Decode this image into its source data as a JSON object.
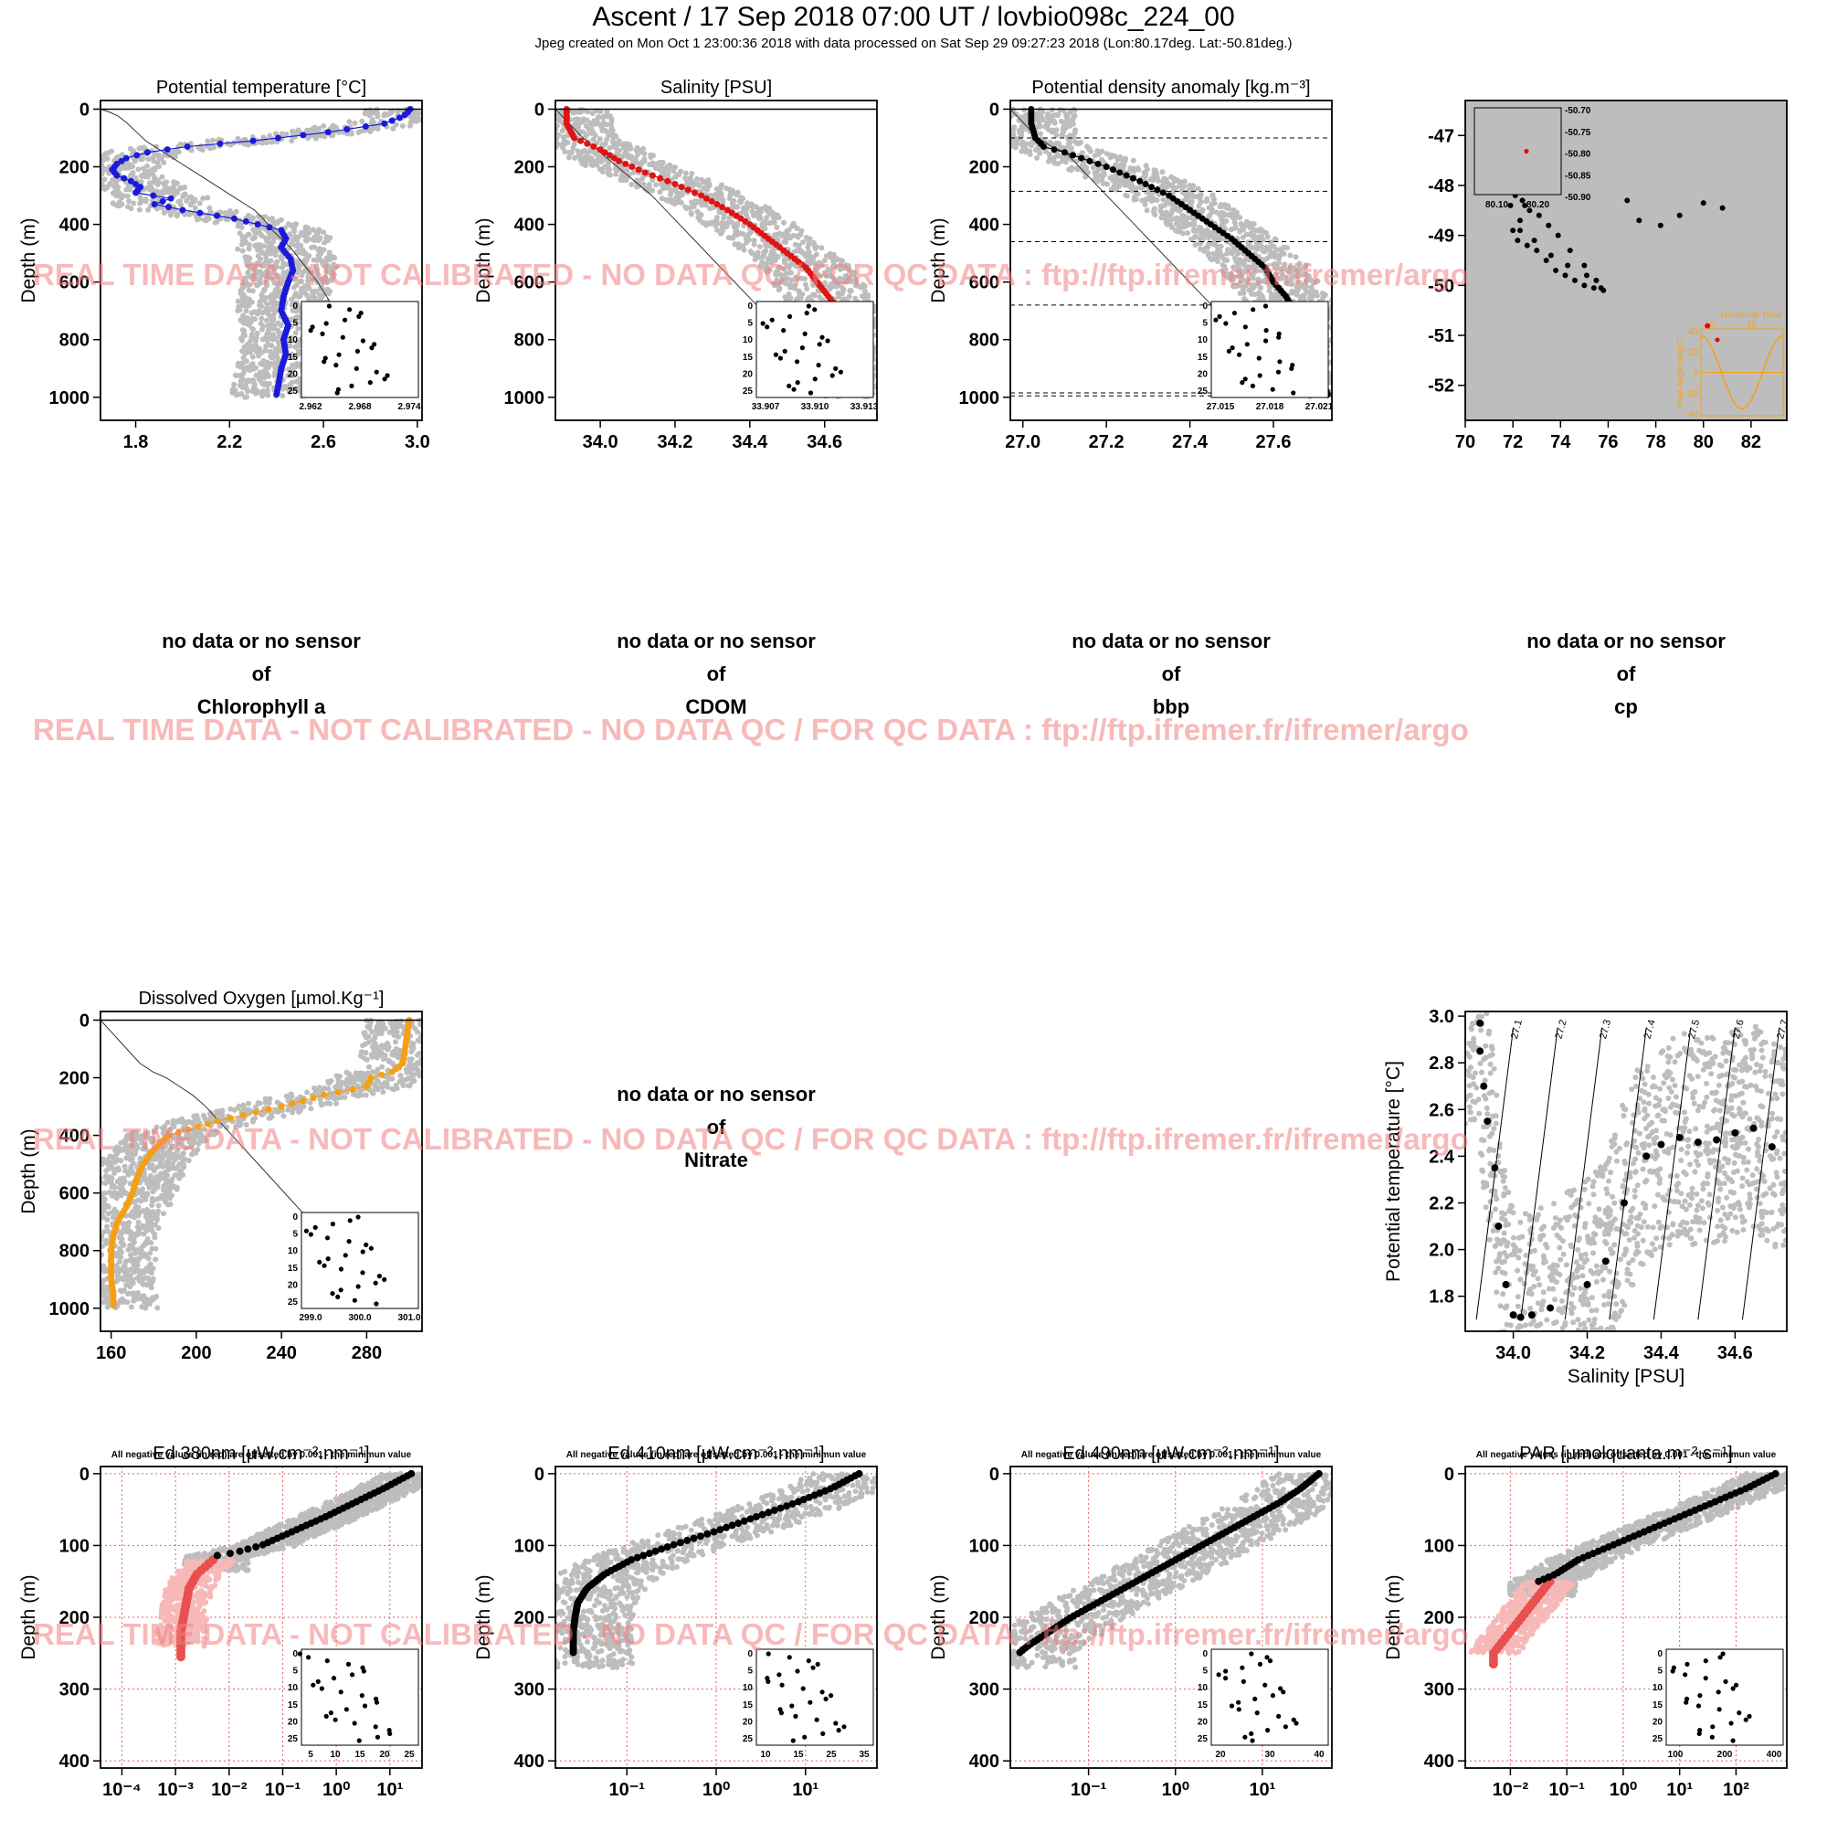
{
  "page": {
    "title": "Ascent / 17 Sep 2018 07:00 UT /  lovbio098c_224_00",
    "subtitle": "Jpeg created on Mon Oct  1 23:00:36 2018 with data processed on Sat Sep 29 09:27:23 2018 (Lon:80.17deg. Lat:-50.81deg.)",
    "watermark": "REAL TIME DATA - NOT CALIBRATED - NO DATA QC   /  FOR QC DATA : ftp://ftp.ifremer.fr/ifremer/argo",
    "depth_label": "Depth (m)",
    "negative_note": "All negative values (in red) are offsetted by 0.001 - the minimun value",
    "no_data_line1": "no data or no sensor",
    "no_data_line2": "of"
  },
  "chart_data": [
    {
      "id": "temp",
      "type": "scatter",
      "title": "Potential temperature [°C]",
      "ylabel": "Depth (m)",
      "xlim": [
        1.65,
        3.02
      ],
      "ylim": [
        1080,
        -30
      ],
      "xticks": [
        "1.8",
        "2.2",
        "2.6",
        "3.0"
      ],
      "xtick_values": [
        1.8,
        2.2,
        2.6,
        3.0
      ],
      "yticks": [
        "0",
        "200",
        "400",
        "600",
        "800",
        "1000"
      ],
      "ytick_values": [
        0,
        200,
        400,
        600,
        800,
        1000
      ],
      "series_color": "#1a1adc",
      "profile_depth": [
        0,
        10,
        25,
        50,
        80,
        110,
        130,
        150,
        170,
        190,
        210,
        230,
        250,
        270,
        290,
        310,
        330,
        350,
        380,
        420,
        450,
        480,
        520,
        560,
        600,
        650,
        700,
        750,
        800,
        850,
        900,
        950,
        990
      ],
      "profile_value": [
        2.97,
        2.96,
        2.94,
        2.86,
        2.62,
        2.3,
        2.02,
        1.85,
        1.76,
        1.72,
        1.7,
        1.72,
        1.78,
        1.82,
        1.8,
        1.95,
        1.88,
        2.0,
        2.22,
        2.42,
        2.44,
        2.42,
        2.46,
        2.47,
        2.45,
        2.43,
        2.42,
        2.45,
        2.43,
        2.44,
        2.42,
        2.41,
        2.4
      ],
      "inset": {
        "xlim": [
          2.962,
          2.974
        ],
        "ylim": [
          26,
          -1
        ],
        "xticks": [
          "2.962",
          "2.968",
          "2.974"
        ],
        "yticks": [
          "0",
          "5",
          "10",
          "15",
          "20",
          "25"
        ]
      }
    },
    {
      "id": "sal",
      "type": "scatter",
      "title": "Salinity [PSU]",
      "ylabel": "Depth (m)",
      "xlim": [
        33.88,
        34.74
      ],
      "ylim": [
        1080,
        -30
      ],
      "xticks": [
        "34.0",
        "34.2",
        "34.4",
        "34.6"
      ],
      "xtick_values": [
        34.0,
        34.2,
        34.4,
        34.6
      ],
      "yticks": [
        "0",
        "200",
        "400",
        "600",
        "800",
        "1000"
      ],
      "ytick_values": [
        0,
        200,
        400,
        600,
        800,
        1000
      ],
      "series_color": "#e01414",
      "profile_depth": [
        0,
        50,
        100,
        140,
        180,
        220,
        260,
        300,
        350,
        400,
        450,
        500,
        550,
        600,
        650,
        700,
        750,
        800,
        850,
        900,
        950,
        990
      ],
      "profile_value": [
        33.91,
        33.91,
        33.93,
        34.0,
        34.05,
        34.12,
        34.2,
        34.27,
        34.34,
        34.4,
        34.45,
        34.5,
        34.55,
        34.58,
        34.61,
        34.64,
        34.66,
        34.67,
        34.68,
        34.695,
        34.705,
        34.71
      ],
      "inset": {
        "xlim": [
          33.907,
          33.913
        ],
        "ylim": [
          26,
          -1
        ],
        "xticks": [
          "33.907",
          "33.910",
          "33.913"
        ],
        "yticks": [
          "0",
          "5",
          "10",
          "15",
          "20",
          "25"
        ]
      }
    },
    {
      "id": "dens",
      "type": "scatter",
      "title": "Potential density anomaly [kg.m⁻³]",
      "ylabel": "Depth (m)",
      "xlim": [
        26.97,
        27.74
      ],
      "ylim": [
        1080,
        -30
      ],
      "xticks": [
        "27.0",
        "27.2",
        "27.4",
        "27.6"
      ],
      "xtick_values": [
        27.0,
        27.2,
        27.4,
        27.6
      ],
      "yticks": [
        "0",
        "200",
        "400",
        "600",
        "800",
        "1000"
      ],
      "ytick_values": [
        0,
        200,
        400,
        600,
        800,
        1000
      ],
      "series_color": "#000000",
      "profile_depth": [
        0,
        50,
        100,
        130,
        150,
        200,
        250,
        300,
        350,
        400,
        450,
        500,
        550,
        600,
        650,
        700,
        750,
        800,
        850,
        900,
        950,
        990
      ],
      "profile_value": [
        27.02,
        27.02,
        27.03,
        27.05,
        27.1,
        27.2,
        27.28,
        27.35,
        27.4,
        27.45,
        27.5,
        27.54,
        27.58,
        27.6,
        27.63,
        27.65,
        27.67,
        27.69,
        27.7,
        27.71,
        27.72,
        27.73
      ],
      "mld_depths": [
        100,
        285,
        460,
        680,
        985,
        995
      ],
      "inset": {
        "xlim": [
          27.015,
          27.021
        ],
        "ylim": [
          26,
          -1
        ],
        "xticks": [
          "27.015",
          "27.018",
          "27.021"
        ],
        "yticks": [
          "0",
          "5",
          "10",
          "15",
          "20",
          "25"
        ]
      }
    },
    {
      "id": "map",
      "type": "scatter",
      "title": "",
      "xlim": [
        70,
        83.5
      ],
      "ylim": [
        -52.7,
        -46.3
      ],
      "xticks": [
        "70",
        "72",
        "74",
        "76",
        "78",
        "80",
        "82"
      ],
      "xtick_values": [
        70,
        72,
        74,
        76,
        78,
        80,
        82
      ],
      "yticks": [
        "-47",
        "-48",
        "-49",
        "-50",
        "-51",
        "-52"
      ],
      "ytick_values": [
        -47,
        -48,
        -49,
        -50,
        -51,
        -52
      ],
      "track_lon": [
        73.2,
        72.8,
        72.5,
        72.3,
        72.0,
        72.2,
        72.6,
        73.0,
        73.4,
        73.8,
        74.2,
        74.6,
        75.0,
        75.4,
        75.8,
        75.5,
        75.0,
        74.4,
        73.9,
        73.5,
        73.1,
        72.7,
        72.4,
        72.1,
        71.9,
        72.3,
        72.9,
        73.6,
        74.3,
        75.1,
        75.7,
        76.8,
        77.3,
        78.2,
        79.0,
        80.0,
        80.8
      ],
      "track_lat": [
        -47.9,
        -48.1,
        -48.4,
        -48.7,
        -48.9,
        -49.1,
        -49.2,
        -49.3,
        -49.5,
        -49.7,
        -49.8,
        -49.9,
        -50.0,
        -50.05,
        -50.1,
        -49.9,
        -49.6,
        -49.3,
        -49.0,
        -48.8,
        -48.6,
        -48.5,
        -48.3,
        -48.2,
        -48.4,
        -48.9,
        -49.1,
        -49.4,
        -49.6,
        -49.8,
        -50.05,
        -48.3,
        -48.7,
        -48.8,
        -48.6,
        -48.35,
        -48.45
      ],
      "inset": {
        "xticks": [
          "80.10",
          "80.20"
        ],
        "yticks": [
          "-50.70",
          "-50.75",
          "-50.80",
          "-50.85",
          "-50.90"
        ]
      },
      "sun_inset": {
        "label_top": "Universal Time",
        "label_side": "Solar Angle (deg.C)",
        "xticks": [
          "0",
          "15"
        ],
        "yticks": [
          "40",
          "20",
          "0",
          "-20",
          "-40"
        ]
      }
    },
    {
      "id": "chla",
      "type": "nodata",
      "param": "Chlorophyll a"
    },
    {
      "id": "cdom",
      "type": "nodata",
      "param": "CDOM"
    },
    {
      "id": "bbp",
      "type": "nodata",
      "param": "bbp"
    },
    {
      "id": "cp",
      "type": "nodata",
      "param": "cp"
    },
    {
      "id": "oxy",
      "type": "scatter",
      "title": "Dissolved Oxygen [µmol.Kg⁻¹]",
      "ylabel": "Depth (m)",
      "xlim": [
        155,
        306
      ],
      "ylim": [
        1080,
        -30
      ],
      "xticks": [
        "160",
        "200",
        "240",
        "280"
      ],
      "xtick_values": [
        160,
        200,
        240,
        280
      ],
      "yticks": [
        "0",
        "200",
        "400",
        "600",
        "800",
        "1000"
      ],
      "ytick_values": [
        0,
        200,
        400,
        600,
        800,
        1000
      ],
      "series_color": "#f5a014",
      "profile_depth": [
        0,
        50,
        100,
        150,
        180,
        200,
        230,
        260,
        300,
        350,
        400,
        450,
        500,
        550,
        600,
        650,
        700,
        750,
        800,
        850,
        900,
        950,
        990
      ],
      "profile_value": [
        300,
        299,
        298,
        297,
        292,
        282,
        280,
        260,
        240,
        210,
        187,
        180,
        175,
        172,
        170,
        167,
        163,
        161,
        160,
        160,
        160,
        161,
        161
      ],
      "inset": {
        "xlim": [
          299.0,
          301.6
        ],
        "ylim": [
          26,
          -1
        ],
        "xticks": [
          "299.0",
          "300.0",
          "301.0"
        ],
        "yticks": [
          "0",
          "5",
          "10",
          "15",
          "20",
          "25"
        ]
      }
    },
    {
      "id": "nitrate",
      "type": "nodata",
      "param": "Nitrate"
    },
    {
      "id": "ts",
      "type": "scatter",
      "title": "",
      "xlabel": "Salinity [PSU]",
      "ylabel": "Potential temperature [°C]",
      "xlim": [
        33.87,
        34.74
      ],
      "ylim": [
        1.65,
        3.02
      ],
      "xticks": [
        "34.0",
        "34.2",
        "34.4",
        "34.6"
      ],
      "xtick_values": [
        34.0,
        34.2,
        34.4,
        34.6
      ],
      "yticks": [
        "1.8",
        "2.0",
        "2.2",
        "2.4",
        "2.6",
        "2.8",
        "3.0"
      ],
      "ytick_values": [
        1.8,
        2.0,
        2.2,
        2.4,
        2.6,
        2.8,
        3.0
      ],
      "profile_sal": [
        33.91,
        33.91,
        33.92,
        33.93,
        33.95,
        33.96,
        33.98,
        34.0,
        34.02,
        34.05,
        34.1,
        34.2,
        34.25,
        34.3,
        34.36,
        34.4,
        34.45,
        34.5,
        34.55,
        34.6,
        34.65,
        34.7
      ],
      "profile_theta": [
        2.97,
        2.85,
        2.7,
        2.55,
        2.35,
        2.1,
        1.85,
        1.72,
        1.71,
        1.72,
        1.75,
        1.85,
        1.95,
        2.2,
        2.4,
        2.45,
        2.48,
        2.46,
        2.47,
        2.5,
        2.52,
        2.44
      ],
      "isopycnals": [
        "27.1",
        "27.2",
        "27.3",
        "27.4",
        "27.5",
        "27.6",
        "27.7"
      ]
    },
    {
      "id": "ed380",
      "type": "scatter",
      "title": "Ed 380nm [µW.cm⁻².nm⁻¹]",
      "ylabel": "Depth (m)",
      "log_x": true,
      "xlim": [
        -4.4,
        1.6
      ],
      "ylim": [
        410,
        -10
      ],
      "xticks": [
        "10⁻⁴",
        "10⁻³",
        "10⁻²",
        "10⁻¹",
        "10⁰",
        "10¹"
      ],
      "xtick_values": [
        -4,
        -3,
        -2,
        -1,
        0,
        1
      ],
      "yticks": [
        "0",
        "100",
        "200",
        "300",
        "400"
      ],
      "ytick_values": [
        0,
        100,
        200,
        300,
        400
      ],
      "profile_depth": [
        0,
        20,
        40,
        60,
        80,
        100,
        110,
        115
      ],
      "profile_logvalue": [
        1.4,
        0.9,
        0.35,
        -0.2,
        -0.8,
        -1.4,
        -1.9,
        -2.3
      ],
      "neg_depth": [
        120,
        140,
        160,
        180,
        200,
        220,
        240
      ],
      "neg_logvalue": [
        -2.3,
        -2.6,
        -2.75,
        -2.8,
        -2.85,
        -2.9,
        -2.9
      ],
      "inset": {
        "xticks": [
          "5",
          "10",
          "15",
          "20",
          "25"
        ],
        "yticks": [
          "0",
          "5",
          "10",
          "15",
          "20",
          "25"
        ]
      }
    },
    {
      "id": "ed410",
      "type": "scatter",
      "title": "Ed 410nm [µW.cm⁻².nm⁻¹]",
      "ylabel": "Depth (m)",
      "log_x": true,
      "xlim": [
        -1.8,
        1.8
      ],
      "ylim": [
        410,
        -10
      ],
      "xticks": [
        "10⁻¹",
        "10⁰",
        "10¹"
      ],
      "xtick_values": [
        -1,
        0,
        1
      ],
      "yticks": [
        "0",
        "100",
        "200",
        "300",
        "400"
      ],
      "ytick_values": [
        0,
        100,
        200,
        300,
        400
      ],
      "profile_depth": [
        0,
        20,
        40,
        60,
        80,
        100,
        120,
        140,
        160,
        180,
        200,
        220,
        240,
        250
      ],
      "profile_logvalue": [
        1.6,
        1.3,
        0.9,
        0.45,
        0.0,
        -0.5,
        -0.95,
        -1.25,
        -1.45,
        -1.55,
        -1.58,
        -1.6,
        -1.6,
        -1.6
      ],
      "inset": {
        "xticks": [
          "10",
          "15",
          "25",
          "35"
        ],
        "yticks": [
          "0",
          "5",
          "10",
          "15",
          "20",
          "25"
        ]
      }
    },
    {
      "id": "ed490",
      "type": "scatter",
      "title": "Ed 490nm [µW.cm⁻².nm⁻¹]",
      "ylabel": "Depth (m)",
      "log_x": true,
      "xlim": [
        -1.9,
        1.8
      ],
      "ylim": [
        410,
        -10
      ],
      "xticks": [
        "10⁻¹",
        "10⁰",
        "10¹"
      ],
      "xtick_values": [
        -1,
        0,
        1
      ],
      "yticks": [
        "0",
        "100",
        "200",
        "300",
        "400"
      ],
      "ytick_values": [
        0,
        100,
        200,
        300,
        400
      ],
      "profile_depth": [
        0,
        20,
        40,
        60,
        80,
        100,
        120,
        140,
        160,
        180,
        200,
        220,
        240,
        250
      ],
      "profile_logvalue": [
        1.65,
        1.45,
        1.2,
        0.9,
        0.6,
        0.3,
        0.0,
        -0.3,
        -0.6,
        -0.9,
        -1.2,
        -1.45,
        -1.7,
        -1.8
      ],
      "inset": {
        "xticks": [
          "20",
          "30",
          "40"
        ],
        "yticks": [
          "0",
          "5",
          "10",
          "15",
          "20",
          "25"
        ]
      }
    },
    {
      "id": "par",
      "type": "scatter",
      "title": "PAR [µmolquanta.m⁻².s⁻¹]",
      "ylabel": "Depth (m)",
      "log_x": true,
      "xlim": [
        -2.8,
        2.9
      ],
      "ylim": [
        410,
        -10
      ],
      "xticks": [
        "10⁻²",
        "10⁻¹",
        "10⁰",
        "10¹",
        "10²"
      ],
      "xtick_values": [
        -2,
        -1,
        0,
        1,
        2
      ],
      "yticks": [
        "0",
        "100",
        "200",
        "300",
        "400"
      ],
      "ytick_values": [
        0,
        100,
        200,
        300,
        400
      ],
      "profile_depth": [
        0,
        20,
        40,
        60,
        80,
        100,
        120,
        140,
        150
      ],
      "profile_logvalue": [
        2.7,
        2.2,
        1.6,
        1.0,
        0.4,
        -0.2,
        -0.8,
        -1.2,
        -1.5
      ],
      "neg_depth": [
        150,
        170,
        190,
        210,
        230,
        250
      ],
      "neg_logvalue": [
        -1.3,
        -1.5,
        -1.7,
        -1.9,
        -2.1,
        -2.3
      ],
      "inset": {
        "xticks": [
          "100",
          "200",
          "400"
        ],
        "yticks": [
          "0",
          "5",
          "10",
          "15",
          "20",
          "25"
        ]
      }
    }
  ]
}
